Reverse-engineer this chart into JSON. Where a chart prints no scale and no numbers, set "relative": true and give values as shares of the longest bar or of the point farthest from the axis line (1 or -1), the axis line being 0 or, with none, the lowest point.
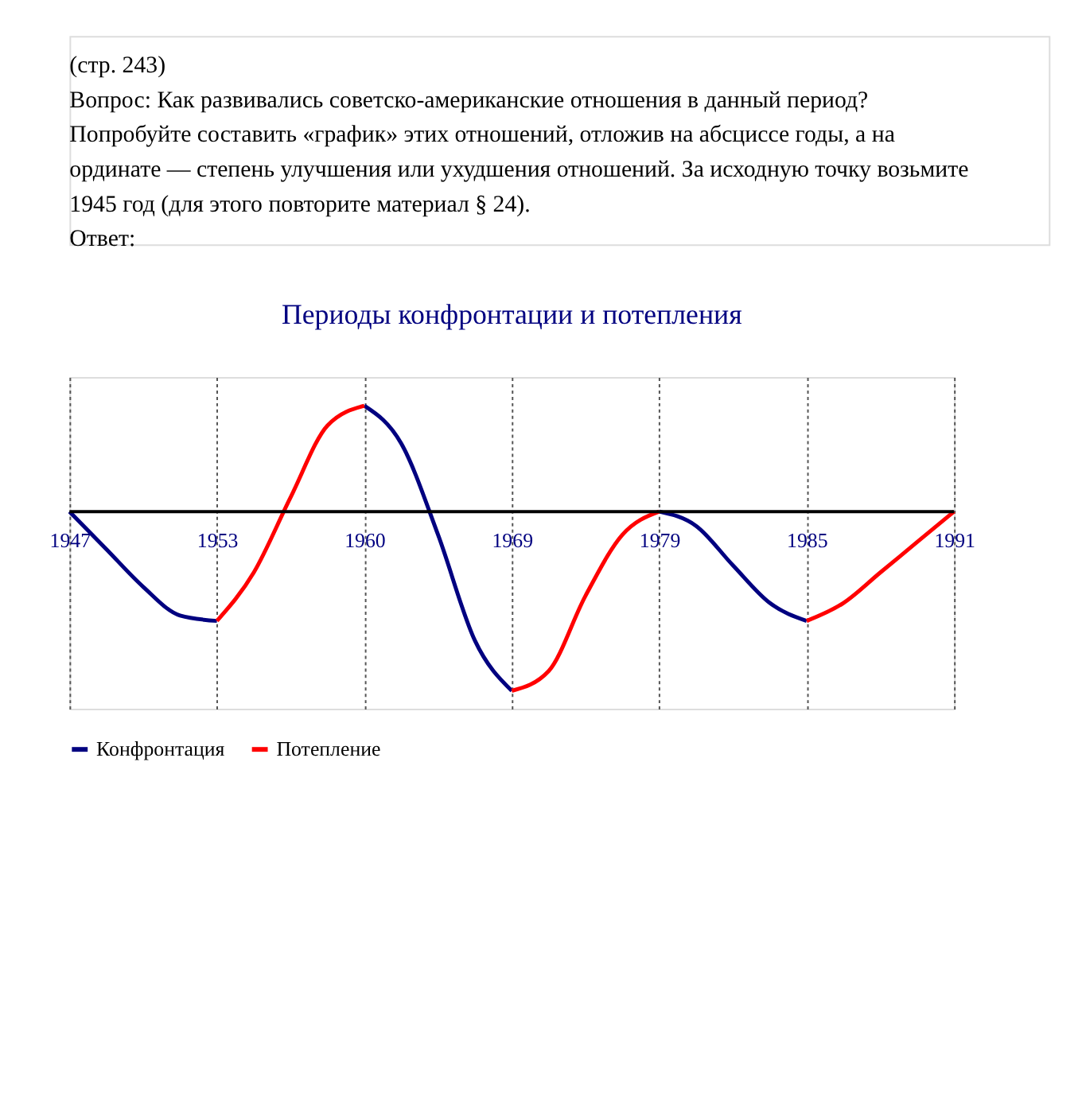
{
  "chart_data": {
    "type": "line",
    "title": "Периоды конфронтации и потепления",
    "relative": true,
    "grid": "x",
    "legend": "bottom",
    "marker": "none",
    "line_style": "solid",
    "annotations": [
      "(стр. 243)",
      "Вопрос: Как развивались советско-американские отношения в данный период? Попробуйте составить «график» этих отношений, отложив на абсциссе годы, а на ординате — степень улучшения или ухудшения отношений. За исходную точку возьмите 1945 год (для этого повторите материал § 24).",
      "Ответ:"
    ],
    "categories": [
      "1947",
      null,
      null,
      null,
      "1953",
      null,
      null,
      null,
      "1960",
      null,
      null,
      null,
      "1969",
      null,
      null,
      null,
      "1979",
      null,
      null,
      null,
      "1985",
      null,
      null,
      null,
      "1991"
    ],
    "series": [
      {
        "name": "Конфронтация",
        "color": "#000080",
        "values": [
          0,
          -0.21,
          -0.42,
          -0.58,
          -0.61,
          null,
          null,
          null,
          0.59,
          0.38,
          -0.13,
          -0.72,
          -1,
          null,
          null,
          null,
          0,
          -0.08,
          -0.3,
          -0.51,
          -0.61,
          null,
          null,
          null,
          null
        ]
      },
      {
        "name": "Потепление",
        "color": "#ff0000",
        "values": [
          null,
          null,
          null,
          null,
          -0.61,
          -0.34,
          0.08,
          0.48,
          0.59,
          null,
          null,
          null,
          -1,
          -0.89,
          -0.47,
          -0.13,
          0,
          null,
          null,
          null,
          -0.61,
          -0.51,
          -0.34,
          -0.17,
          0
        ]
      }
    ]
  }
}
